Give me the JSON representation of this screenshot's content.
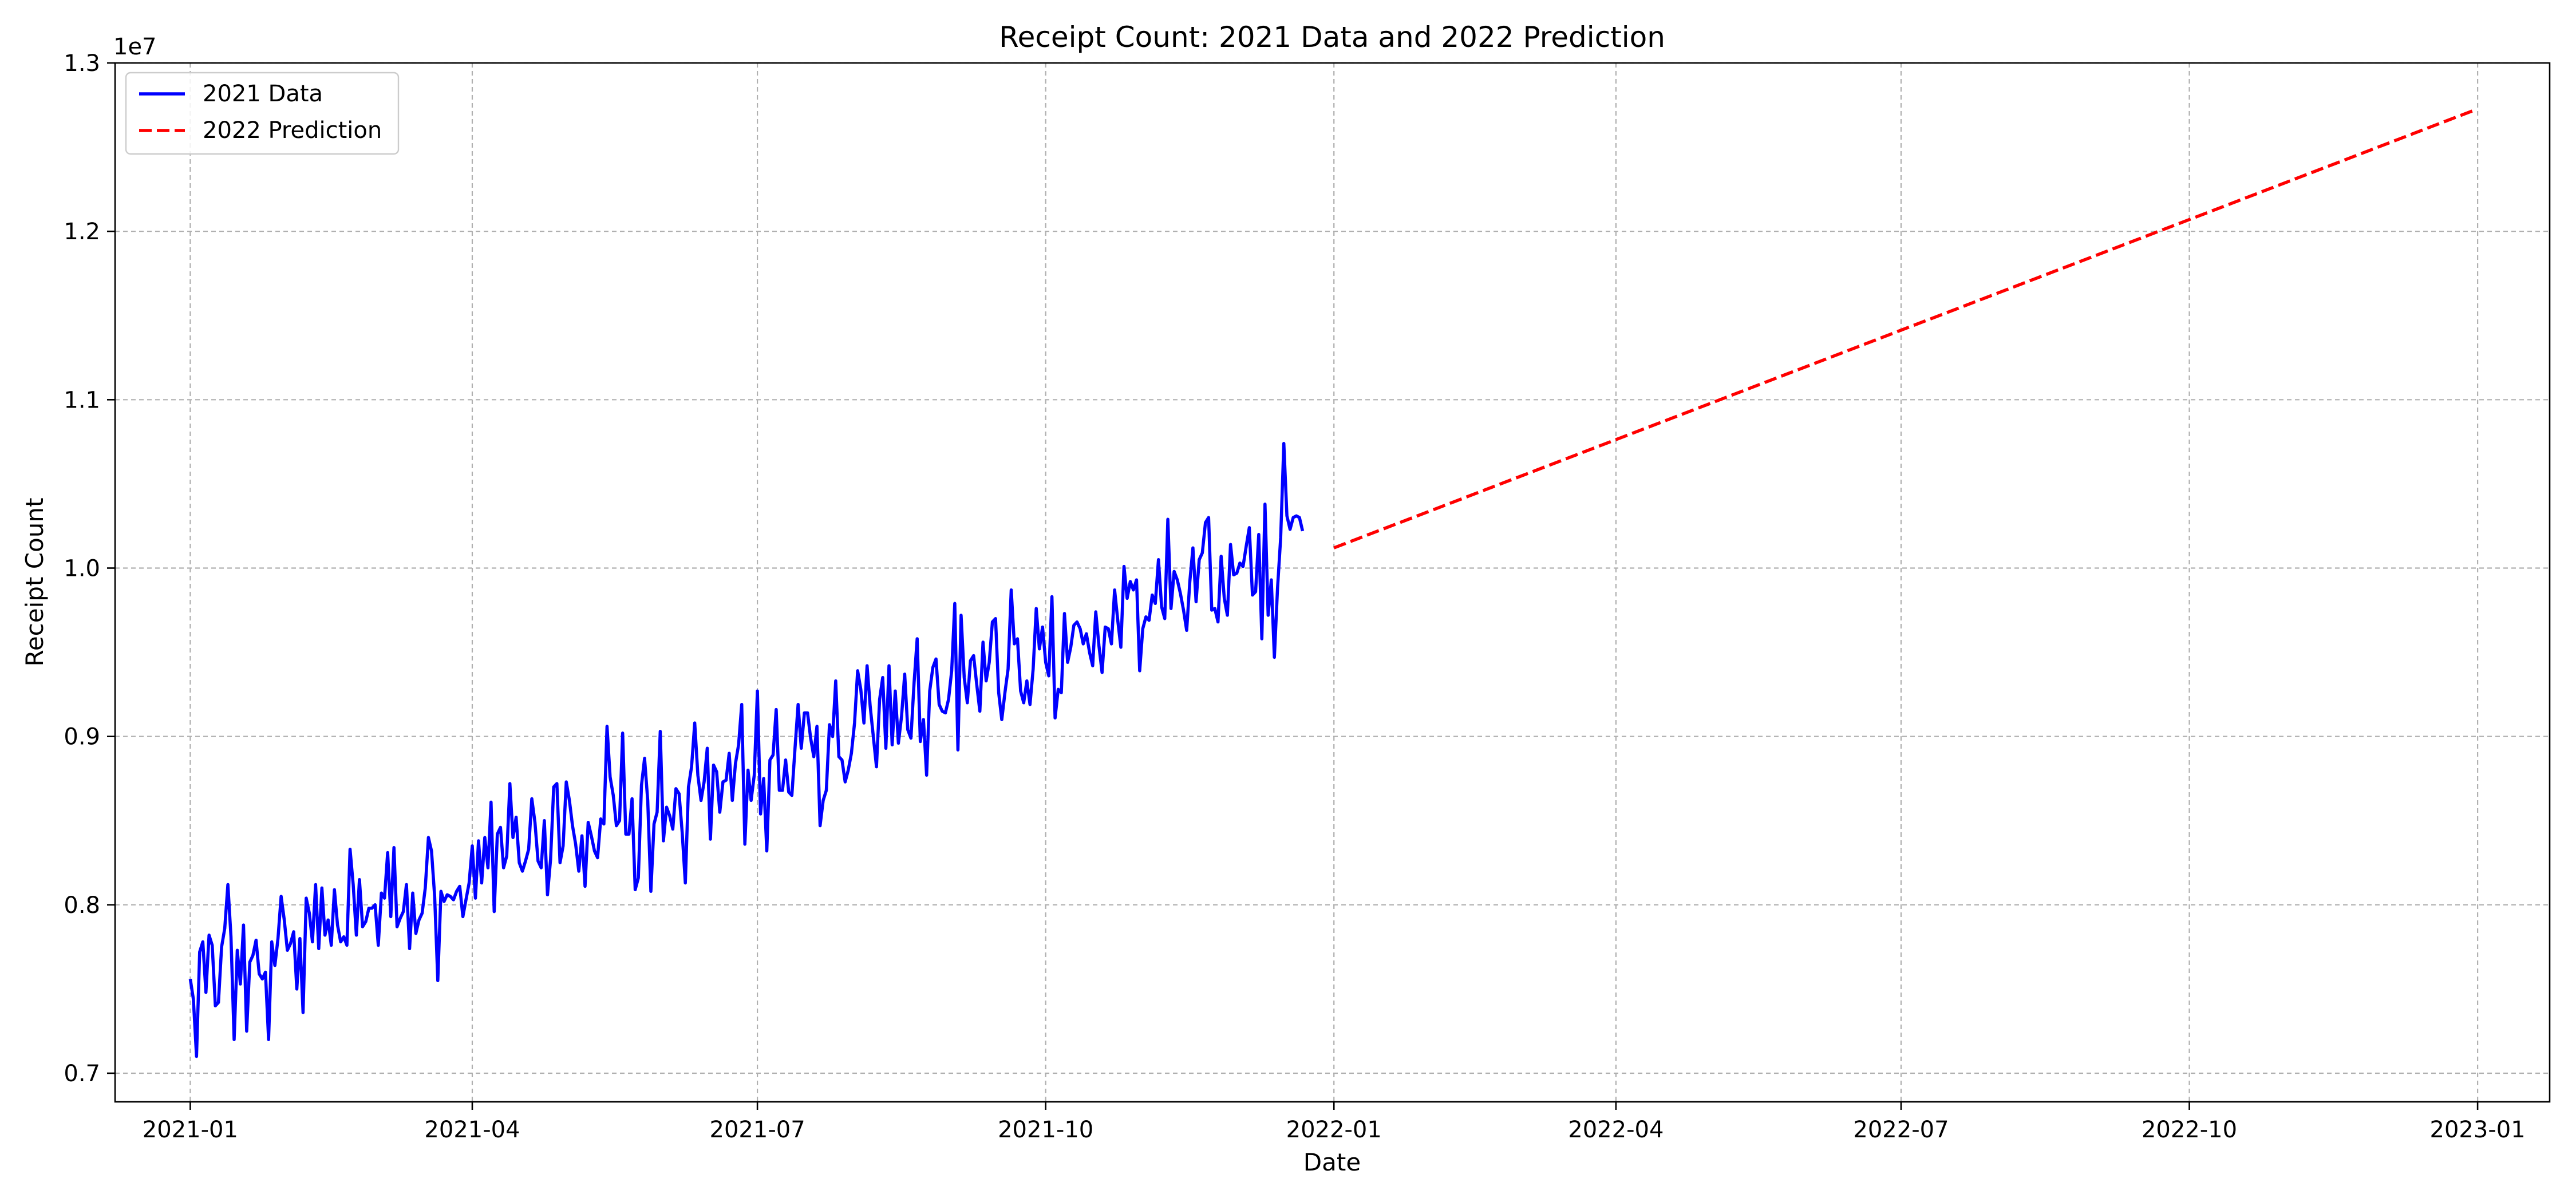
{
  "chart_data": {
    "type": "line",
    "title": "Receipt Count: 2021 Data and 2022 Prediction",
    "xlabel": "Date",
    "ylabel": "Receipt Count",
    "y_offset_label": "1e7",
    "xlim": [
      "2020-12-08",
      "2023-01-24"
    ],
    "ylim": [
      6.83,
      13.0
    ],
    "y_unit_multiplier": 10000000,
    "y_ticks": [
      0.7,
      0.8,
      0.9,
      1.0,
      1.1,
      1.2,
      1.3
    ],
    "y_tick_labels": [
      "0.7",
      "0.8",
      "0.9",
      "1.0",
      "1.1",
      "1.2",
      "1.3"
    ],
    "x_ticks": [
      "2021-01-01",
      "2021-04-01",
      "2021-07-01",
      "2021-10-01",
      "2022-01-01",
      "2022-04-01",
      "2022-07-01",
      "2022-10-01",
      "2023-01-01"
    ],
    "x_tick_labels": [
      "2021-01",
      "2021-04",
      "2021-07",
      "2021-10",
      "2022-01",
      "2022-04",
      "2022-07",
      "2022-10",
      "2023-01"
    ],
    "grid": true,
    "legend_position": "top-left",
    "series": [
      {
        "name": "2021 Data",
        "color": "#0000ff",
        "style": "solid",
        "x_start": "2021-01-01",
        "x_step_days": 1,
        "y": [
          7.56,
          7.44,
          7.1,
          7.72,
          7.78,
          7.48,
          7.82,
          7.76,
          7.4,
          7.42,
          7.75,
          7.86,
          8.12,
          7.81,
          7.2,
          7.73,
          7.53,
          7.88,
          7.25,
          7.66,
          7.7,
          7.79,
          7.59,
          7.56,
          7.6,
          7.2,
          7.78,
          7.64,
          7.8,
          8.05,
          7.91,
          7.73,
          7.77,
          7.84,
          7.5,
          7.8,
          7.36,
          8.04,
          7.95,
          7.78,
          8.12,
          7.74,
          8.1,
          7.82,
          7.91,
          7.76,
          8.09,
          7.88,
          7.78,
          7.81,
          7.76,
          8.33,
          8.12,
          7.82,
          8.15,
          7.87,
          7.9,
          7.98,
          7.98,
          8.0,
          7.76,
          8.07,
          8.04,
          8.31,
          7.93,
          8.34,
          7.87,
          7.92,
          7.96,
          8.12,
          7.74,
          8.07,
          7.83,
          7.91,
          7.95,
          8.1,
          8.4,
          8.32,
          8.05,
          7.55,
          8.08,
          8.02,
          8.06,
          8.05,
          8.03,
          8.08,
          8.11,
          7.93,
          8.03,
          8.13,
          8.35,
          8.04,
          8.38,
          8.13,
          8.4,
          8.22,
          8.61,
          7.96,
          8.42,
          8.46,
          8.22,
          8.29,
          8.72,
          8.4,
          8.52,
          8.25,
          8.2,
          8.26,
          8.33,
          8.63,
          8.49,
          8.26,
          8.22,
          8.5,
          8.06,
          8.27,
          8.7,
          8.72,
          8.25,
          8.35,
          8.73,
          8.62,
          8.47,
          8.36,
          8.2,
          8.41,
          8.11,
          8.49,
          8.41,
          8.32,
          8.28,
          8.51,
          8.48,
          9.06,
          8.76,
          8.65,
          8.47,
          8.5,
          9.02,
          8.42,
          8.42,
          8.63,
          8.09,
          8.16,
          8.71,
          8.87,
          8.62,
          8.08,
          8.48,
          8.55,
          9.03,
          8.38,
          8.58,
          8.53,
          8.45,
          8.69,
          8.66,
          8.43,
          8.13,
          8.7,
          8.82,
          9.08,
          8.77,
          8.62,
          8.73,
          8.93,
          8.39,
          8.83,
          8.79,
          8.55,
          8.73,
          8.74,
          8.9,
          8.62,
          8.84,
          8.95,
          9.19,
          8.36,
          8.8,
          8.62,
          8.77,
          9.27,
          8.54,
          8.75,
          8.32,
          8.86,
          8.89,
          9.16,
          8.68,
          8.68,
          8.86,
          8.67,
          8.65,
          8.93,
          9.19,
          8.93,
          9.14,
          9.14,
          8.99,
          8.88,
          9.06,
          8.47,
          8.62,
          8.68,
          9.07,
          9.0,
          9.33,
          8.88,
          8.86,
          8.73,
          8.8,
          8.9,
          9.08,
          9.39,
          9.28,
          9.08,
          9.42,
          9.18,
          9.0,
          8.82,
          9.22,
          9.35,
          8.93,
          9.42,
          8.95,
          9.27,
          8.96,
          9.12,
          9.37,
          9.04,
          8.99,
          9.32,
          9.58,
          8.97,
          9.1,
          8.77,
          9.27,
          9.41,
          9.46,
          9.19,
          9.15,
          9.14,
          9.22,
          9.39,
          9.79,
          8.92,
          9.72,
          9.35,
          9.2,
          9.45,
          9.48,
          9.31,
          9.15,
          9.56,
          9.33,
          9.44,
          9.68,
          9.7,
          9.26,
          9.1,
          9.26,
          9.4,
          9.87,
          9.55,
          9.58,
          9.27,
          9.2,
          9.33,
          9.19,
          9.4,
          9.76,
          9.52,
          9.65,
          9.44,
          9.36,
          9.83,
          9.11,
          9.28,
          9.26,
          9.73,
          9.44,
          9.53,
          9.66,
          9.68,
          9.64,
          9.55,
          9.61,
          9.5,
          9.42,
          9.74,
          9.54,
          9.38,
          9.65,
          9.64,
          9.55,
          9.87,
          9.69,
          9.53,
          10.01,
          9.82,
          9.92,
          9.87,
          9.93,
          9.39,
          9.64,
          9.71,
          9.69,
          9.84,
          9.79,
          10.05,
          9.77,
          9.7,
          10.29,
          9.76,
          9.98,
          9.93,
          9.85,
          9.75,
          9.63,
          9.92,
          10.12,
          9.8,
          10.05,
          10.09,
          10.27,
          10.3,
          9.75,
          9.76,
          9.68,
          10.07,
          9.82,
          9.72,
          10.14,
          9.96,
          9.97,
          10.03,
          10.01,
          10.13,
          10.24,
          9.84,
          9.86,
          10.2,
          9.58,
          10.38,
          9.72,
          9.93,
          9.47,
          9.88,
          10.18,
          10.74,
          10.31,
          10.23,
          10.3,
          10.31,
          10.3,
          10.22
        ]
      },
      {
        "name": "2022 Prediction",
        "color": "#ff0000",
        "style": "dashed",
        "x": [
          "2022-01-01",
          "2022-12-31"
        ],
        "y": [
          10.12,
          12.72
        ]
      }
    ]
  }
}
